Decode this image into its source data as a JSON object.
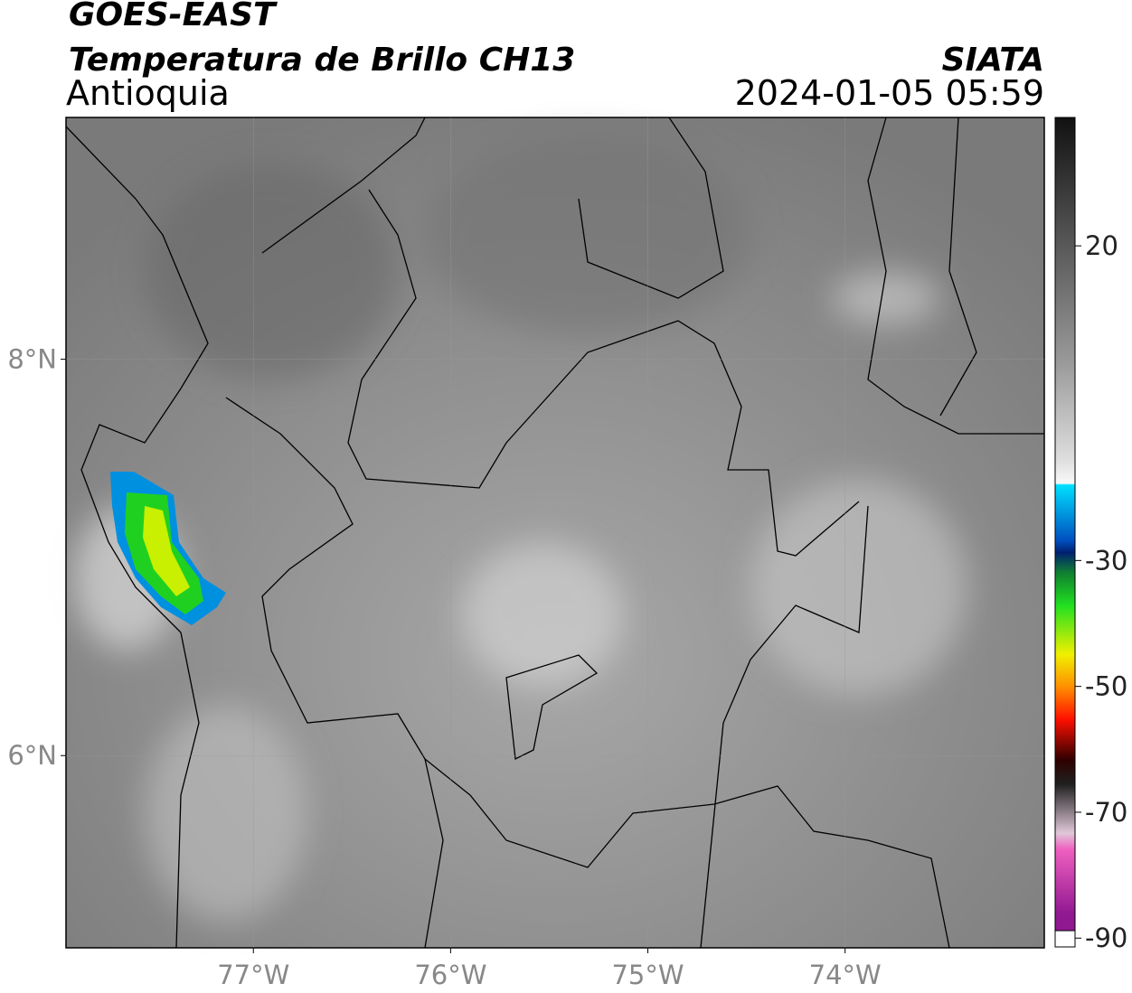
{
  "header": {
    "satellite": "GOES-EAST",
    "product": "Temperatura de Brillo CH13",
    "region": "Antioquia",
    "source": "SIATA",
    "datetime": "2024-01-05 05:59"
  },
  "map": {
    "xlim": [
      -77.95,
      -72.99
    ],
    "ylim": [
      5.03,
      9.22
    ],
    "xticks": [
      {
        "value": -77,
        "label": "77°W"
      },
      {
        "value": -76,
        "label": "76°W"
      },
      {
        "value": -75,
        "label": "75°W"
      },
      {
        "value": -74,
        "label": "74°W"
      }
    ],
    "yticks": [
      {
        "value": 6,
        "label": "6°N"
      },
      {
        "value": 8,
        "label": "8°N"
      }
    ]
  },
  "colorbar": {
    "range": [
      -91.4,
      40.4
    ],
    "ticks": [
      20,
      -30,
      -50,
      -70,
      -90
    ]
  }
}
